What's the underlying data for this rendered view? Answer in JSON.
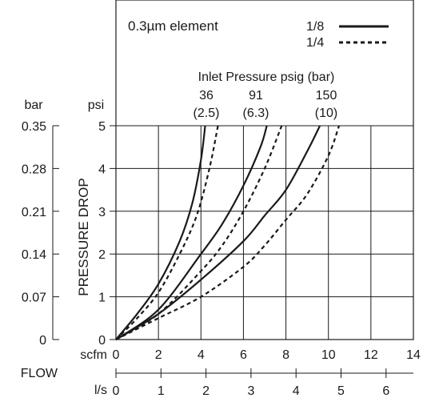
{
  "chart_data": {
    "type": "line",
    "legend_title": "0.3µm element",
    "legend": [
      {
        "label": "1/8",
        "style": "solid"
      },
      {
        "label": "1/4",
        "style": "dashed"
      }
    ],
    "inlet_pressure_title": "Inlet Pressure psig (bar)",
    "inlet_pressures": [
      {
        "psig": "36",
        "bar": "(2.5)"
      },
      {
        "psig": "91",
        "bar": "(6.3)"
      },
      {
        "psig": "150",
        "bar": "(10)"
      }
    ],
    "y_axis": {
      "label": "PRESSURE DROP",
      "unit_psi": "psi",
      "unit_bar": "bar",
      "psi_ticks": [
        "0",
        "1",
        "2",
        "3",
        "4",
        "5"
      ],
      "bar_ticks": [
        "0",
        "0.07",
        "0.14",
        "0.21",
        "0.28",
        "0.35"
      ],
      "ylim": [
        0,
        5
      ]
    },
    "x_axis": {
      "label": "FLOW",
      "unit_scfm": "scfm",
      "unit_ls": "l/s",
      "scfm_ticks": [
        "0",
        "2",
        "4",
        "6",
        "8",
        "10",
        "12",
        "14"
      ],
      "ls_ticks": [
        "0",
        "1",
        "2",
        "3",
        "4",
        "5",
        "6"
      ],
      "xlim": [
        0,
        14
      ]
    },
    "grid": true,
    "series": [
      {
        "name": "1/8",
        "pressure": "36",
        "style": "solid",
        "x": [
          0,
          1,
          2,
          3,
          3.6,
          4.0,
          4.2
        ],
        "y": [
          0,
          0.6,
          1.3,
          2.3,
          3.2,
          4.2,
          5.0
        ]
      },
      {
        "name": "1/4",
        "pressure": "36",
        "style": "dashed",
        "x": [
          0,
          1,
          2,
          3,
          3.8,
          4.4,
          4.8
        ],
        "y": [
          0,
          0.5,
          1.1,
          2.0,
          2.9,
          4.0,
          5.0
        ]
      },
      {
        "name": "1/8",
        "pressure": "91",
        "style": "solid",
        "x": [
          0,
          2,
          4,
          5,
          6,
          6.8,
          7.1
        ],
        "y": [
          0,
          0.7,
          2.0,
          2.7,
          3.6,
          4.5,
          5.0
        ]
      },
      {
        "name": "1/4",
        "pressure": "91",
        "style": "dashed",
        "x": [
          0,
          2,
          4,
          5,
          6,
          7,
          7.8
        ],
        "y": [
          0,
          0.6,
          1.6,
          2.2,
          3.0,
          4.0,
          5.0
        ]
      },
      {
        "name": "1/8",
        "pressure": "150",
        "style": "solid",
        "x": [
          0,
          2,
          4,
          6,
          7,
          8,
          9,
          9.6
        ],
        "y": [
          0,
          0.6,
          1.4,
          2.3,
          2.9,
          3.5,
          4.4,
          5.0
        ]
      },
      {
        "name": "1/4",
        "pressure": "150",
        "style": "dashed",
        "x": [
          0,
          2,
          4,
          6,
          7,
          8,
          9,
          10,
          10.5
        ],
        "y": [
          0,
          0.5,
          1.0,
          1.7,
          2.2,
          2.8,
          3.4,
          4.3,
          5.0
        ]
      }
    ]
  }
}
